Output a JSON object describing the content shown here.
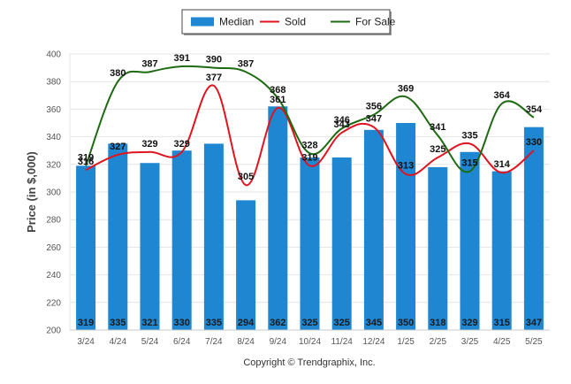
{
  "chart_data": {
    "type": "bar",
    "title": "",
    "xlabel": "",
    "ylabel": "Price (in $,000)",
    "ylim": [
      200,
      400
    ],
    "yticks": [
      200,
      220,
      240,
      260,
      280,
      300,
      320,
      340,
      360,
      380,
      400
    ],
    "categories": [
      "3/24",
      "4/24",
      "5/24",
      "6/24",
      "7/24",
      "8/24",
      "9/24",
      "10/24",
      "11/24",
      "12/24",
      "1/25",
      "2/25",
      "3/25",
      "4/25",
      "5/25"
    ],
    "grid": true,
    "legend_position": "top-center",
    "series": [
      {
        "name": "Median",
        "kind": "bar",
        "color": "#1f86d1",
        "values": [
          319,
          335,
          321,
          330,
          335,
          294,
          362,
          325,
          325,
          345,
          350,
          318,
          329,
          315,
          347
        ]
      },
      {
        "name": "Sold",
        "kind": "line",
        "color": "#e0141e",
        "values": [
          316,
          327,
          329,
          329,
          377,
          305,
          361,
          319,
          343,
          347,
          313,
          325,
          335,
          314,
          330
        ]
      },
      {
        "name": "For Sale",
        "kind": "line",
        "color": "#1e6b12",
        "values": [
          319,
          380,
          387,
          391,
          390,
          387,
          368,
          328,
          346,
          356,
          369,
          341,
          315,
          364,
          354
        ]
      }
    ]
  },
  "footer": {
    "copyright": "Copyright © Trendgraphix, Inc."
  }
}
